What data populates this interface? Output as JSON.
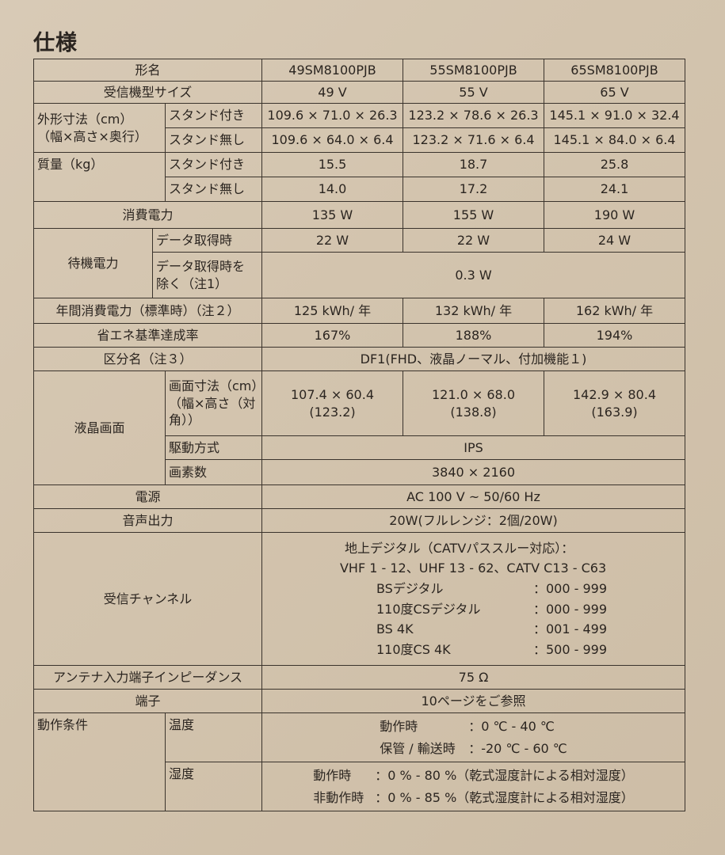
{
  "title": "仕様",
  "models": [
    "49SM8100PJB",
    "55SM8100PJB",
    "65SM8100PJB"
  ],
  "rows": {
    "model_label": "形名",
    "size": {
      "label": "受信機型サイズ",
      "values": [
        "49 V",
        "55 V",
        "65 V"
      ]
    },
    "dims": {
      "label": "外形寸法（cm）",
      "label2": "（幅×高さ×奥行）",
      "with_stand": {
        "label": "スタンド付き",
        "values": [
          "109.6 × 71.0 × 26.3",
          "123.2 × 78.6 × 26.3",
          "145.1 × 91.0 × 32.4"
        ]
      },
      "without_stand": {
        "label": "スタンド無し",
        "values": [
          "109.6 × 64.0 × 6.4",
          "123.2 × 71.6 × 6.4",
          "145.1 × 84.0 × 6.4"
        ]
      }
    },
    "mass": {
      "label": "質量（kg）",
      "with_stand": {
        "label": "スタンド付き",
        "values": [
          "15.5",
          "18.7",
          "25.8"
        ]
      },
      "without_stand": {
        "label": "スタンド無し",
        "values": [
          "14.0",
          "17.2",
          "24.1"
        ]
      }
    },
    "power": {
      "label": "消費電力",
      "values": [
        "135 W",
        "155 W",
        "190 W"
      ]
    },
    "standby": {
      "label": "待機電力",
      "data": {
        "label": "データ取得時",
        "values": [
          "22 W",
          "22 W",
          "24 W"
        ]
      },
      "nodata": {
        "label": "データ取得時を",
        "label2": "除く（注1）",
        "value": "0.3 W"
      }
    },
    "annual": {
      "label": "年間消費電力（標準時）（注２）",
      "values": [
        "125 kWh/ 年",
        "132 kWh/ 年",
        "162 kWh/ 年"
      ]
    },
    "eco": {
      "label": "省エネ基準達成率",
      "values": [
        "167%",
        "188%",
        "194%"
      ]
    },
    "category": {
      "label": "区分名（注３）",
      "value": "DF1(FHD、液晶ノーマル、付加機能１)"
    },
    "lcd": {
      "label": "液晶画面",
      "screen": {
        "label": "画面寸法（cm）",
        "label2": "（幅×高さ（対",
        "label3": "角））",
        "values": [
          {
            "wh": "107.4 × 60.4",
            "diag": "(123.2)"
          },
          {
            "wh": "121.0 × 68.0",
            "diag": "(138.8)"
          },
          {
            "wh": "142.9 × 80.4",
            "diag": "(163.9)"
          }
        ]
      },
      "drive": {
        "label": "駆動方式",
        "value": "IPS"
      },
      "pixels": {
        "label": "画素数",
        "value": "3840 × 2160"
      }
    },
    "supply": {
      "label": "電源",
      "value": "AC 100 V ~ 50/60 Hz"
    },
    "audio": {
      "label": "音声出力",
      "value": "20W(フルレンジ：2個/20W)"
    },
    "channels": {
      "label": "受信チャンネル",
      "line1": "地上デジタル（CATVパススルー対応）：",
      "line2": "VHF 1 - 12、UHF 13 - 62、CATV C13 - C63",
      "items": [
        {
          "k": "BSデジタル",
          "v": "：000 - 999"
        },
        {
          "k": "110度CSデジタル",
          "v": "：000 - 999"
        },
        {
          "k": "BS 4K",
          "v": "：001 - 499"
        },
        {
          "k": "110度CS 4K",
          "v": "：500 - 999"
        }
      ]
    },
    "antenna": {
      "label": "アンテナ入力端子インピーダンス",
      "value": "75 Ω"
    },
    "terminal": {
      "label": "端子",
      "value": "10ページをご参照"
    },
    "conditions": {
      "label": "動作条件",
      "temp": {
        "label": "温度",
        "items": [
          {
            "k": "動作時",
            "v": "：0 ℃ - 40 ℃"
          },
          {
            "k": "保管 / 輸送時",
            "v": "：-20 ℃ - 60 ℃"
          }
        ]
      },
      "humidity": {
        "label": "湿度",
        "items": [
          {
            "k": "動作時",
            "v": "：0 % - 80 %（乾式湿度計による相対湿度）"
          },
          {
            "k": "非動作時",
            "v": "：0 % - 85 %（乾式湿度計による相対湿度）"
          }
        ]
      }
    }
  }
}
